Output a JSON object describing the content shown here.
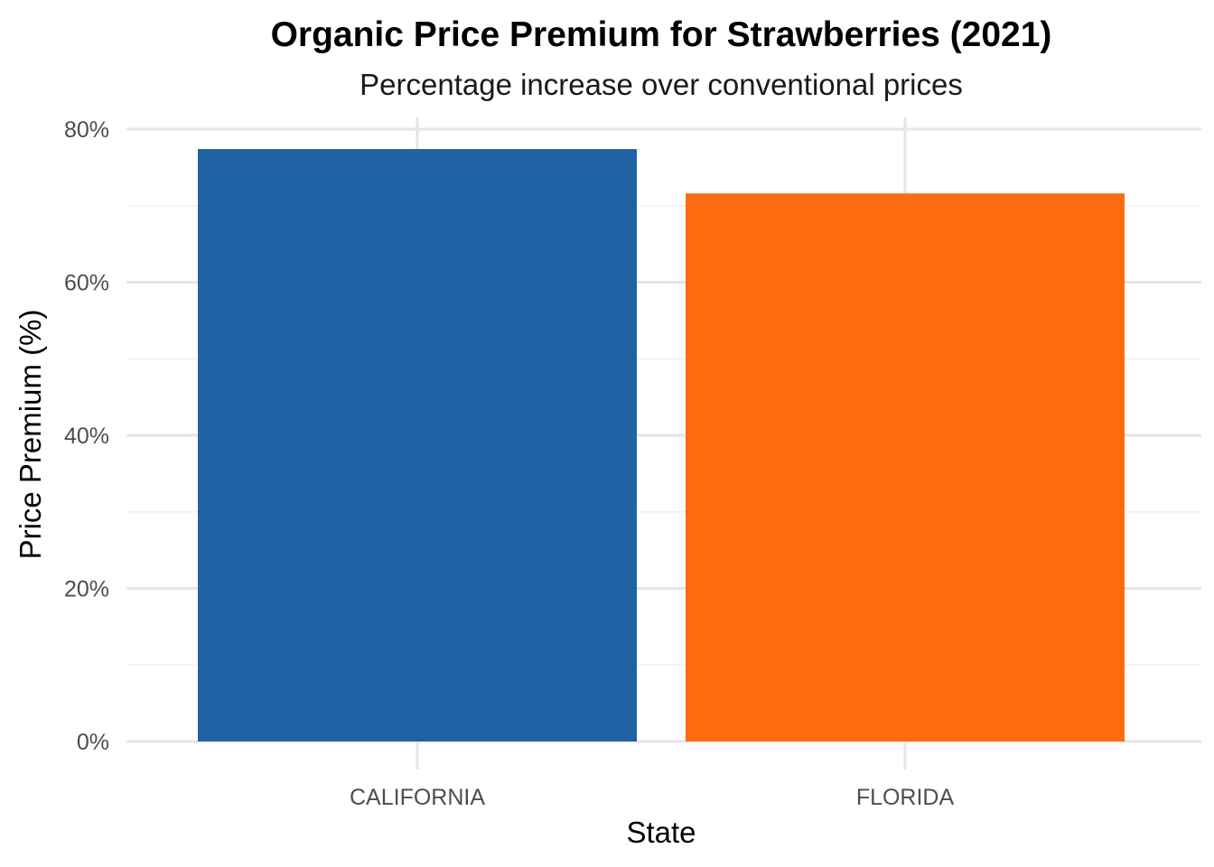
{
  "chart_data": {
    "type": "bar",
    "title": "Organic Price Premium for Strawberries (2021)",
    "subtitle": "Percentage increase over conventional prices",
    "xlabel": "State",
    "ylabel": "Price Premium (%)",
    "categories": [
      "CALIFORNIA",
      "FLORIDA"
    ],
    "values": [
      77.4,
      71.6
    ],
    "colors": [
      "#1F63A5",
      "#FF6B11"
    ],
    "ylim": [
      0,
      80
    ],
    "y_ticks": [
      0,
      20,
      40,
      60,
      80
    ],
    "y_tick_labels": [
      "0%",
      "20%",
      "40%",
      "60%",
      "80%"
    ],
    "grid": true,
    "legend": "none"
  }
}
